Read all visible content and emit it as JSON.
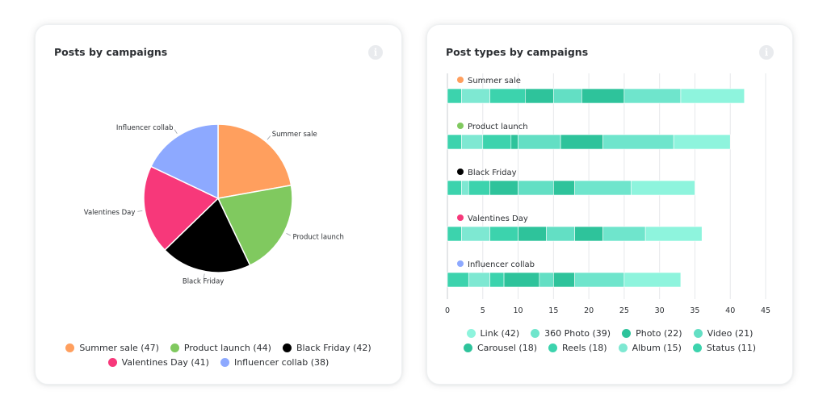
{
  "left_card": {
    "title": "Posts by campaigns",
    "info_icon": "info-icon",
    "info_glyph": "i"
  },
  "right_card": {
    "title": "Post types by campaigns",
    "info_icon": "info-icon",
    "info_glyph": "i"
  },
  "chart_data": [
    {
      "type": "pie",
      "title": "Posts by campaigns",
      "slices": [
        {
          "label": "Summer sale",
          "value": 47,
          "color": "#ff9f5e"
        },
        {
          "label": "Product launch",
          "value": 44,
          "color": "#80c95f"
        },
        {
          "label": "Black Friday",
          "value": 42,
          "color": "#000000"
        },
        {
          "label": "Valentines Day",
          "value": 41,
          "color": "#f7387a"
        },
        {
          "label": "Influencer collab",
          "value": 38,
          "color": "#8da9ff"
        }
      ],
      "legend": [
        [
          "Summer sale (47)",
          "Product launch (44)",
          "Black Friday (42)"
        ],
        [
          "Valentines Day (41)",
          "Influencer collab (38)"
        ]
      ],
      "legend_position": "bottom"
    },
    {
      "type": "bar",
      "orientation": "horizontal",
      "stacked": true,
      "title": "Post types by campaigns",
      "categories": [
        "Summer sale",
        "Product launch",
        "Black Friday",
        "Valentines Day",
        "Influencer collab"
      ],
      "category_colors": [
        "#ff9f5e",
        "#80c95f",
        "#000000",
        "#f7387a",
        "#8da9ff"
      ],
      "series": [
        {
          "name": "Status",
          "color": "#3cd3ad",
          "values": [
            2,
            2,
            2,
            2,
            3
          ]
        },
        {
          "name": "Album",
          "color": "#7ee8d2",
          "values": [
            4,
            3,
            1,
            4,
            3
          ]
        },
        {
          "name": "Reels",
          "color": "#3cd3ad",
          "values": [
            5,
            4,
            3,
            4,
            2
          ]
        },
        {
          "name": "Carousel",
          "color": "#2ec39b",
          "values": [
            4,
            1,
            4,
            4,
            5
          ]
        },
        {
          "name": "Video",
          "color": "#63dfc4",
          "values": [
            4,
            6,
            5,
            4,
            2
          ]
        },
        {
          "name": "Photo",
          "color": "#2ec39b",
          "values": [
            6,
            6,
            3,
            4,
            3
          ]
        },
        {
          "name": "360 Photo",
          "color": "#6fe5cc",
          "values": [
            8,
            10,
            8,
            6,
            7
          ]
        },
        {
          "name": "Link",
          "color": "#8ef4dd",
          "values": [
            9,
            8,
            9,
            8,
            8
          ]
        }
      ],
      "xlim": [
        0,
        45
      ],
      "x_ticks": [
        "0",
        "5",
        "10",
        "15",
        "20",
        "25",
        "30",
        "35",
        "40",
        "45"
      ],
      "grid": true,
      "legend": [
        [
          {
            "label": "Link (42)",
            "color": "#8ef4dd"
          },
          {
            "label": "360 Photo (39)",
            "color": "#6fe5cc"
          },
          {
            "label": "Photo (22)",
            "color": "#2ec39b"
          },
          {
            "label": "Video (21)",
            "color": "#63dfc4"
          }
        ],
        [
          {
            "label": "Carousel (18)",
            "color": "#2ec39b"
          },
          {
            "label": "Reels (18)",
            "color": "#3cd3ad"
          },
          {
            "label": "Album (15)",
            "color": "#7ee8d2"
          },
          {
            "label": "Status (11)",
            "color": "#3cd3ad"
          }
        ]
      ],
      "legend_position": "bottom"
    }
  ]
}
